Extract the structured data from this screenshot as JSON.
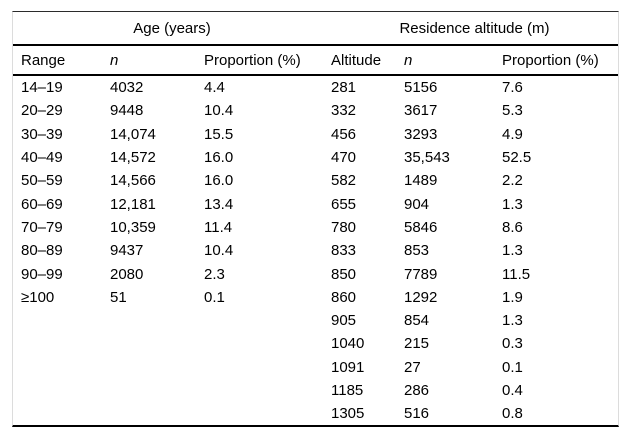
{
  "table": {
    "groups": [
      {
        "label": "Age (years)"
      },
      {
        "label": "Residence altitude (m)"
      }
    ],
    "columns": [
      "Range",
      "n",
      "Proportion (%)",
      "Altitude",
      "n",
      "Proportion (%)"
    ],
    "age_rows": [
      [
        "14–19",
        "4032",
        "4.4"
      ],
      [
        "20–29",
        "9448",
        "10.4"
      ],
      [
        "30–39",
        "14,074",
        "15.5"
      ],
      [
        "40–49",
        "14,572",
        "16.0"
      ],
      [
        "50–59",
        "14,566",
        "16.0"
      ],
      [
        "60–69",
        "12,181",
        "13.4"
      ],
      [
        "70–79",
        "10,359",
        "11.4"
      ],
      [
        "80–89",
        "9437",
        "10.4"
      ],
      [
        "90–99",
        "2080",
        "2.3"
      ],
      [
        "≥100",
        "51",
        "0.1"
      ]
    ],
    "altitude_rows": [
      [
        "281",
        "5156",
        "7.6"
      ],
      [
        "332",
        "3617",
        "5.3"
      ],
      [
        "456",
        "3293",
        "4.9"
      ],
      [
        "470",
        "35,543",
        "52.5"
      ],
      [
        "582",
        "1489",
        "2.2"
      ],
      [
        "655",
        "904",
        "1.3"
      ],
      [
        "780",
        "5846",
        "8.6"
      ],
      [
        "833",
        "853",
        "1.3"
      ],
      [
        "850",
        "7789",
        "11.5"
      ],
      [
        "860",
        "1292",
        "1.9"
      ],
      [
        "905",
        "854",
        "1.3"
      ],
      [
        "1040",
        "215",
        "0.3"
      ],
      [
        "1091",
        "27",
        "0.1"
      ],
      [
        "1185",
        "286",
        "0.4"
      ],
      [
        "1305",
        "516",
        "0.8"
      ]
    ]
  }
}
